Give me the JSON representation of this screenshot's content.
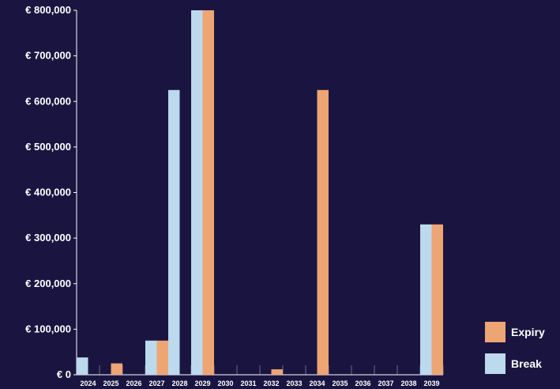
{
  "chart_data": {
    "type": "bar",
    "categories": [
      "2024",
      "2025",
      "2026",
      "2027",
      "2028",
      "2029",
      "2030",
      "2031",
      "2032",
      "2033",
      "2034",
      "2035",
      "2036",
      "2037",
      "2038",
      "2039"
    ],
    "series": [
      {
        "name": "Break",
        "color": "#bcd9ee",
        "values": [
          38000,
          0,
          0,
          75000,
          625000,
          800000,
          0,
          0,
          0,
          0,
          0,
          0,
          0,
          0,
          0,
          330000
        ]
      },
      {
        "name": "Expiry",
        "color": "#eda574",
        "values": [
          0,
          25000,
          0,
          75000,
          0,
          800000,
          0,
          0,
          12000,
          0,
          625000,
          0,
          0,
          0,
          0,
          330000
        ]
      }
    ],
    "ylim": [
      0,
      800000
    ],
    "ytick_labels": [
      "€ 0",
      "€ 100,000",
      "€ 200,000",
      "€ 300,000",
      "€ 400,000",
      "€ 500,000",
      "€ 600,000",
      "€ 700,000",
      "€ 800,000"
    ],
    "legend_position": "bottom-right",
    "legend_order": [
      "Expiry",
      "Break"
    ],
    "grid": false,
    "background": "#1a1540"
  }
}
